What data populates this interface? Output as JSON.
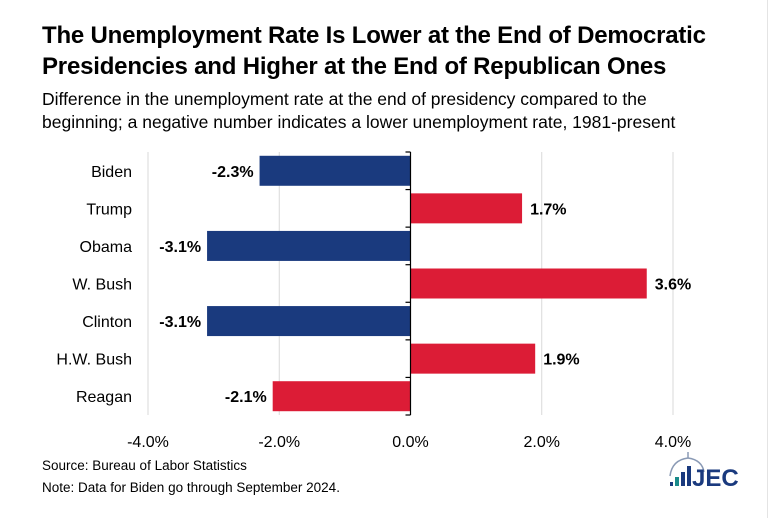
{
  "title_line1": "The Unemployment Rate Is Lower at the End of Democratic",
  "title_line2": "Presidencies and Higher at the End of Republican Ones",
  "subtitle_line1": "Difference in the unemployment rate at the end of presidency compared to the",
  "subtitle_line2": "beginning; a negative number indicates a lower unemployment rate, 1981-present",
  "source": "Source: Bureau of Labor Statistics",
  "note": "Note: Data for Biden go through September 2024.",
  "logo_text": "JEC",
  "colors": {
    "democratic": "#1a3a7e",
    "republican": "#dc1c36",
    "grid": "#d9d9d9"
  },
  "chart_data": {
    "type": "bar",
    "orientation": "horizontal",
    "categories": [
      "Biden",
      "Trump",
      "Obama",
      "W. Bush",
      "Clinton",
      "H.W. Bush",
      "Reagan"
    ],
    "values": [
      -2.3,
      1.7,
      -3.1,
      3.6,
      -3.1,
      1.9,
      -2.1
    ],
    "labels": [
      "-2.3%",
      "1.7%",
      "-3.1%",
      "3.6%",
      "-3.1%",
      "1.9%",
      "-2.1%"
    ],
    "party": [
      "D",
      "R",
      "D",
      "R",
      "D",
      "R",
      "R"
    ],
    "xlim": [
      -4,
      4
    ],
    "xticks": [
      -4,
      -2,
      0,
      2,
      4
    ],
    "xtick_labels": [
      "-4.0%",
      "-2.0%",
      "0.0%",
      "2.0%",
      "4.0%"
    ],
    "grid": true,
    "xlabel": "",
    "ylabel": ""
  }
}
